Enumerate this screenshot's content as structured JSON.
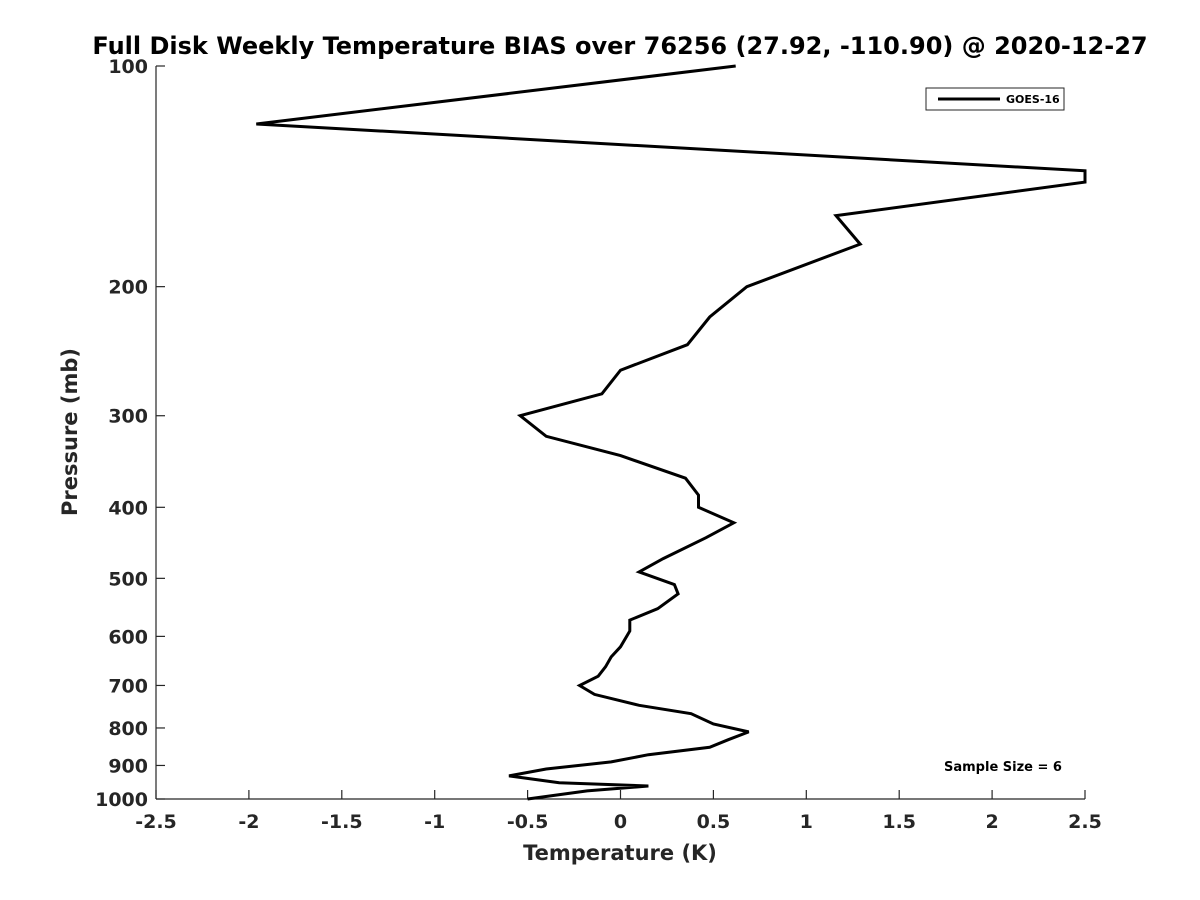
{
  "chart_data": {
    "type": "line",
    "title": "Full Disk Weekly Temperature BIAS over 76256 (27.92, -110.90) @ 2020-12-27",
    "xlabel": "Temperature (K)",
    "ylabel": "Pressure (mb)",
    "xlim": [
      -2.5,
      2.5
    ],
    "ylim": [
      1000,
      100
    ],
    "yscale": "log",
    "y_reversed": true,
    "grid": false,
    "legend_position": "top-right",
    "xticks": [
      -2.5,
      -2,
      -1.5,
      -1,
      -0.5,
      0,
      0.5,
      1,
      1.5,
      2,
      2.5
    ],
    "xtick_labels": [
      "-2.5",
      "-2",
      "-1.5",
      "-1",
      "-0.5",
      "0",
      "0.5",
      "1",
      "1.5",
      "2",
      "2.5"
    ],
    "yticks": [
      100,
      200,
      300,
      400,
      500,
      600,
      700,
      800,
      900,
      1000
    ],
    "ytick_labels": [
      "100",
      "200",
      "300",
      "400",
      "500",
      "600",
      "700",
      "800",
      "900",
      "1000"
    ],
    "series": [
      {
        "name": "GOES-16",
        "color": "#000000",
        "points": [
          [
            0.62,
            100
          ],
          [
            -1.96,
            120
          ],
          [
            2.5,
            139
          ],
          [
            2.5,
            144
          ],
          [
            1.16,
            160
          ],
          [
            1.29,
            175
          ],
          [
            0.68,
            200
          ],
          [
            0.48,
            220
          ],
          [
            0.36,
            240
          ],
          [
            0.0,
            260
          ],
          [
            -0.1,
            280
          ],
          [
            -0.54,
            300
          ],
          [
            -0.4,
            320
          ],
          [
            0.0,
            340
          ],
          [
            0.35,
            365
          ],
          [
            0.42,
            385
          ],
          [
            0.42,
            400
          ],
          [
            0.61,
            420
          ],
          [
            0.46,
            440
          ],
          [
            0.23,
            470
          ],
          [
            0.1,
            490
          ],
          [
            0.29,
            510
          ],
          [
            0.31,
            525
          ],
          [
            0.2,
            550
          ],
          [
            0.05,
            570
          ],
          [
            0.05,
            590
          ],
          [
            0.0,
            620
          ],
          [
            -0.05,
            640
          ],
          [
            -0.08,
            660
          ],
          [
            -0.12,
            680
          ],
          [
            -0.22,
            700
          ],
          [
            -0.14,
            720
          ],
          [
            0.1,
            745
          ],
          [
            0.38,
            765
          ],
          [
            0.5,
            790
          ],
          [
            0.69,
            810
          ],
          [
            0.58,
            830
          ],
          [
            0.48,
            850
          ],
          [
            0.15,
            870
          ],
          [
            -0.05,
            890
          ],
          [
            -0.4,
            910
          ],
          [
            -0.6,
            930
          ],
          [
            -0.33,
            950
          ],
          [
            0.15,
            960
          ],
          [
            -0.18,
            975
          ],
          [
            -0.5,
            1000
          ]
        ]
      }
    ],
    "annotations": [
      {
        "text": "Sample Size = 6",
        "position": "bottom-right"
      }
    ]
  }
}
